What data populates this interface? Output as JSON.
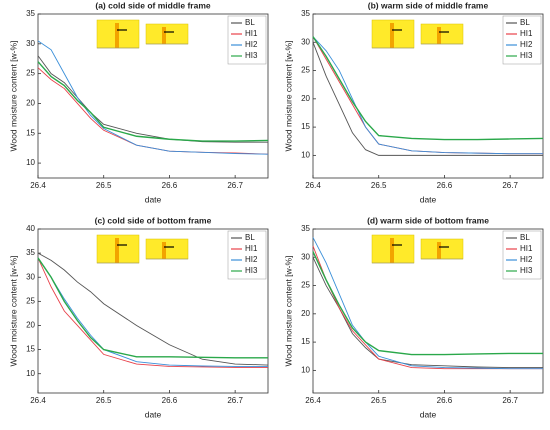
{
  "chart_data": [
    {
      "type": "line",
      "title": "(a) cold side of middle frame",
      "xlabel": "date",
      "ylabel": "Wood moisture content [w-%]",
      "x": [
        26.4,
        26.42,
        26.44,
        26.46,
        26.48,
        26.5,
        26.55,
        26.6,
        26.65,
        26.7,
        26.75
      ],
      "xlim": [
        26.4,
        26.75
      ],
      "xticks": [
        26.4,
        26.5,
        26.6,
        26.7
      ],
      "ylim": [
        7.5,
        35
      ],
      "yticks": [
        10,
        15,
        20,
        25,
        30,
        35
      ],
      "legend": "upper right",
      "series": [
        {
          "name": "BL",
          "color": "#555555",
          "values": [
            28,
            25,
            23.5,
            21,
            18.5,
            16.5,
            15,
            14,
            13.6,
            13.5,
            13.5
          ]
        },
        {
          "name": "HI1",
          "color": "#e8414a",
          "values": [
            26,
            24,
            22.5,
            20,
            17.5,
            15.5,
            13,
            12,
            11.8,
            11.7,
            11.5
          ]
        },
        {
          "name": "HI2",
          "color": "#3a8fd9",
          "values": [
            30.5,
            29,
            25,
            21,
            18,
            15.8,
            13,
            12,
            11.8,
            11.6,
            11.5
          ]
        },
        {
          "name": "HI3",
          "color": "#2aa84a",
          "values": [
            27,
            24.5,
            23,
            20.5,
            18.5,
            16,
            14.5,
            14,
            13.7,
            13.7,
            13.8
          ]
        }
      ]
    },
    {
      "type": "line",
      "title": "(b) warm side of middle frame",
      "xlabel": "date",
      "ylabel": "Wood moisture content [w-%]",
      "x": [
        26.4,
        26.42,
        26.44,
        26.46,
        26.48,
        26.5,
        26.55,
        26.6,
        26.65,
        26.7,
        26.75
      ],
      "xlim": [
        26.4,
        26.75
      ],
      "xticks": [
        26.4,
        26.5,
        26.6,
        26.7
      ],
      "ylim": [
        6,
        35
      ],
      "yticks": [
        10,
        15,
        20,
        25,
        30,
        35
      ],
      "legend": "upper right",
      "series": [
        {
          "name": "BL",
          "color": "#555555",
          "values": [
            30,
            24,
            19,
            14,
            11,
            10,
            10,
            10,
            10,
            10,
            10
          ]
        },
        {
          "name": "HI1",
          "color": "#e8414a",
          "values": [
            31,
            27,
            23,
            19,
            15,
            12,
            10.8,
            10.5,
            10.4,
            10.3,
            10.3
          ]
        },
        {
          "name": "HI2",
          "color": "#3a8fd9",
          "values": [
            31,
            28.5,
            25,
            20,
            15,
            12,
            10.8,
            10.5,
            10.4,
            10.3,
            10.3
          ]
        },
        {
          "name": "HI3",
          "color": "#2aa84a",
          "values": [
            31,
            27.5,
            23.5,
            19.5,
            16,
            13.5,
            13,
            12.8,
            12.8,
            12.9,
            13
          ]
        }
      ]
    },
    {
      "type": "line",
      "title": "(c) cold side of bottom frame",
      "xlabel": "date",
      "ylabel": "Wood moisture content [w-%]",
      "x": [
        26.4,
        26.42,
        26.44,
        26.46,
        26.48,
        26.5,
        26.55,
        26.6,
        26.65,
        26.7,
        26.75
      ],
      "xlim": [
        26.4,
        26.75
      ],
      "xticks": [
        26.4,
        26.5,
        26.6,
        26.7
      ],
      "ylim": [
        6,
        40
      ],
      "yticks": [
        10,
        15,
        20,
        25,
        30,
        35,
        40
      ],
      "legend": "upper right",
      "series": [
        {
          "name": "BL",
          "color": "#555555",
          "values": [
            35,
            33.5,
            31.5,
            29,
            27,
            24.5,
            20,
            16,
            13,
            12,
            11.8
          ]
        },
        {
          "name": "HI1",
          "color": "#e8414a",
          "values": [
            34,
            28,
            23,
            20,
            17,
            14,
            12,
            11.5,
            11.4,
            11.3,
            11.3
          ]
        },
        {
          "name": "HI2",
          "color": "#3a8fd9",
          "values": [
            34,
            30,
            25.5,
            21.5,
            18,
            15,
            12.5,
            11.8,
            11.6,
            11.5,
            11.5
          ]
        },
        {
          "name": "HI3",
          "color": "#2aa84a",
          "values": [
            34,
            30,
            25,
            21,
            17.5,
            15,
            13.5,
            13.5,
            13.4,
            13.3,
            13.3
          ]
        }
      ]
    },
    {
      "type": "line",
      "title": "(d) warm side of bottom frame",
      "xlabel": "date",
      "ylabel": "Wood moisture content [w-%]",
      "x": [
        26.4,
        26.42,
        26.44,
        26.46,
        26.48,
        26.5,
        26.55,
        26.6,
        26.65,
        26.7,
        26.75
      ],
      "xlim": [
        26.4,
        26.75
      ],
      "xticks": [
        26.4,
        26.5,
        26.6,
        26.7
      ],
      "ylim": [
        6,
        35
      ],
      "yticks": [
        10,
        15,
        20,
        25,
        30,
        35
      ],
      "legend": "upper right",
      "series": [
        {
          "name": "BL",
          "color": "#555555",
          "values": [
            30,
            25,
            21,
            16.5,
            14,
            12,
            11,
            10.8,
            10.6,
            10.5,
            10.5
          ]
        },
        {
          "name": "HI1",
          "color": "#e8414a",
          "values": [
            32,
            26,
            21,
            17,
            14.5,
            12,
            10.5,
            10.3,
            10.3,
            10.3,
            10.3
          ]
        },
        {
          "name": "HI2",
          "color": "#3a8fd9",
          "values": [
            33.5,
            29,
            23.5,
            18,
            15,
            12.5,
            10.8,
            10.5,
            10.4,
            10.3,
            10.3
          ]
        },
        {
          "name": "HI3",
          "color": "#2aa84a",
          "values": [
            31,
            26,
            21.5,
            17.5,
            15,
            13.5,
            12.8,
            12.8,
            12.9,
            13,
            13
          ]
        }
      ]
    }
  ]
}
